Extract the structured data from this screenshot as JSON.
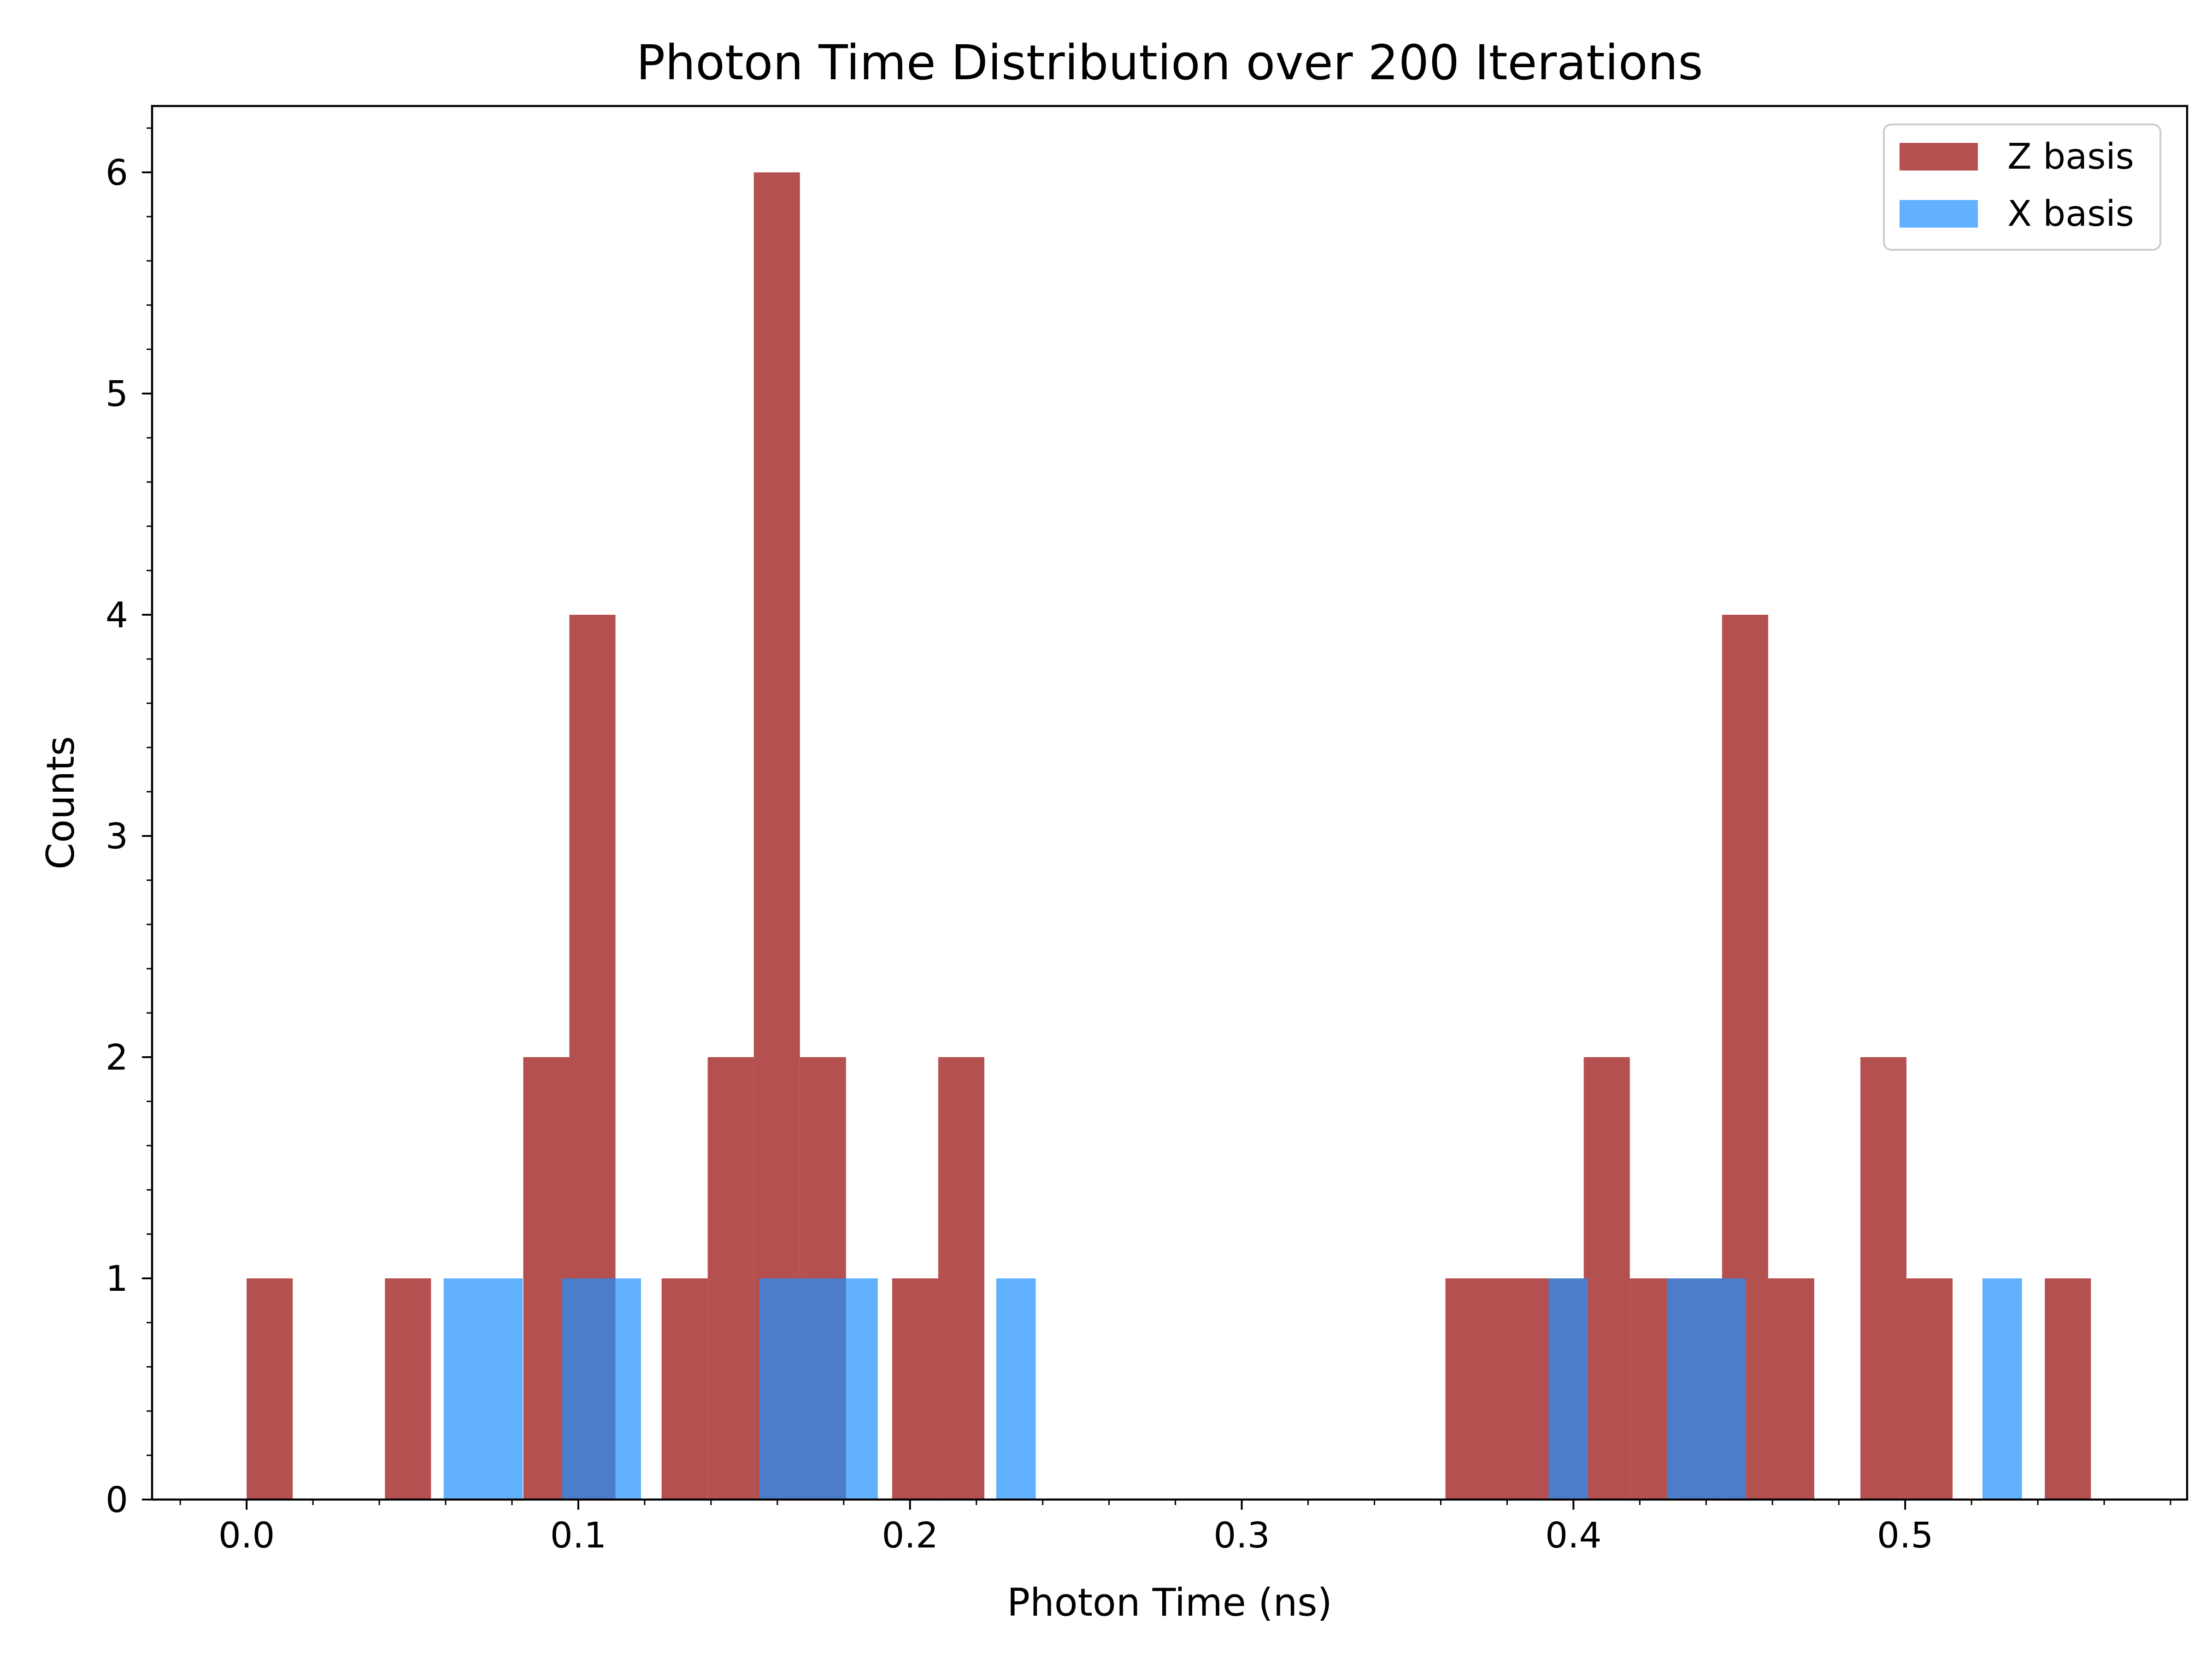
{
  "chart_data": {
    "type": "bar",
    "title": "Photon Time Distribution over 200 Iterations",
    "xlabel": "Photon Time (ns)",
    "ylabel": "Counts",
    "xlim": [
      -0.0285,
      0.585
    ],
    "ylim": [
      0,
      6.3
    ],
    "x_ticks": [
      "0.0",
      "0.1",
      "0.2",
      "0.3",
      "0.4",
      "0.5"
    ],
    "x_tick_values": [
      0.0,
      0.1,
      0.2,
      0.3,
      0.4,
      0.5
    ],
    "y_ticks": [
      "0",
      "1",
      "2",
      "3",
      "4",
      "5",
      "6"
    ],
    "y_tick_values": [
      0,
      1,
      2,
      3,
      4,
      5,
      6
    ],
    "grid": false,
    "legend_position": "top-right",
    "series": [
      {
        "name": "Z basis",
        "color": "#a52a2a",
        "opacity": 0.82,
        "bins": [
          {
            "x0": 0.0,
            "x1": 0.0139,
            "count": 1
          },
          {
            "x0": 0.0417,
            "x1": 0.0556,
            "count": 1
          },
          {
            "x0": 0.0834,
            "x1": 0.0973,
            "count": 2
          },
          {
            "x0": 0.0973,
            "x1": 0.1112,
            "count": 4
          },
          {
            "x0": 0.1251,
            "x1": 0.139,
            "count": 1
          },
          {
            "x0": 0.139,
            "x1": 0.1529,
            "count": 2
          },
          {
            "x0": 0.1529,
            "x1": 0.1668,
            "count": 6
          },
          {
            "x0": 0.1668,
            "x1": 0.1807,
            "count": 2
          },
          {
            "x0": 0.1946,
            "x1": 0.2085,
            "count": 1
          },
          {
            "x0": 0.2085,
            "x1": 0.2224,
            "count": 2
          },
          {
            "x0": 0.3614,
            "x1": 0.3753,
            "count": 1
          },
          {
            "x0": 0.3753,
            "x1": 0.3892,
            "count": 1
          },
          {
            "x0": 0.3892,
            "x1": 0.4031,
            "count": 1
          },
          {
            "x0": 0.4031,
            "x1": 0.417,
            "count": 2
          },
          {
            "x0": 0.417,
            "x1": 0.4309,
            "count": 1
          },
          {
            "x0": 0.4309,
            "x1": 0.4448,
            "count": 1
          },
          {
            "x0": 0.4448,
            "x1": 0.4587,
            "count": 4
          },
          {
            "x0": 0.4587,
            "x1": 0.4726,
            "count": 1
          },
          {
            "x0": 0.4865,
            "x1": 0.5004,
            "count": 2
          },
          {
            "x0": 0.5004,
            "x1": 0.5143,
            "count": 1
          },
          {
            "x0": 0.5421,
            "x1": 0.556,
            "count": 1
          }
        ]
      },
      {
        "name": "X basis",
        "color": "#1e90ff",
        "opacity": 0.7,
        "bins": [
          {
            "x0": 0.0594,
            "x1": 0.0713,
            "count": 1
          },
          {
            "x0": 0.0713,
            "x1": 0.0832,
            "count": 1
          },
          {
            "x0": 0.0951,
            "x1": 0.107,
            "count": 1
          },
          {
            "x0": 0.107,
            "x1": 0.1189,
            "count": 1
          },
          {
            "x0": 0.1546,
            "x1": 0.1665,
            "count": 1
          },
          {
            "x0": 0.1665,
            "x1": 0.1784,
            "count": 1
          },
          {
            "x0": 0.1784,
            "x1": 0.1903,
            "count": 1
          },
          {
            "x0": 0.226,
            "x1": 0.2379,
            "count": 1
          },
          {
            "x0": 0.3925,
            "x1": 0.4044,
            "count": 1
          },
          {
            "x0": 0.4282,
            "x1": 0.4401,
            "count": 1
          },
          {
            "x0": 0.4401,
            "x1": 0.452,
            "count": 1
          },
          {
            "x0": 0.5233,
            "x1": 0.5352,
            "count": 1
          }
        ]
      }
    ]
  }
}
